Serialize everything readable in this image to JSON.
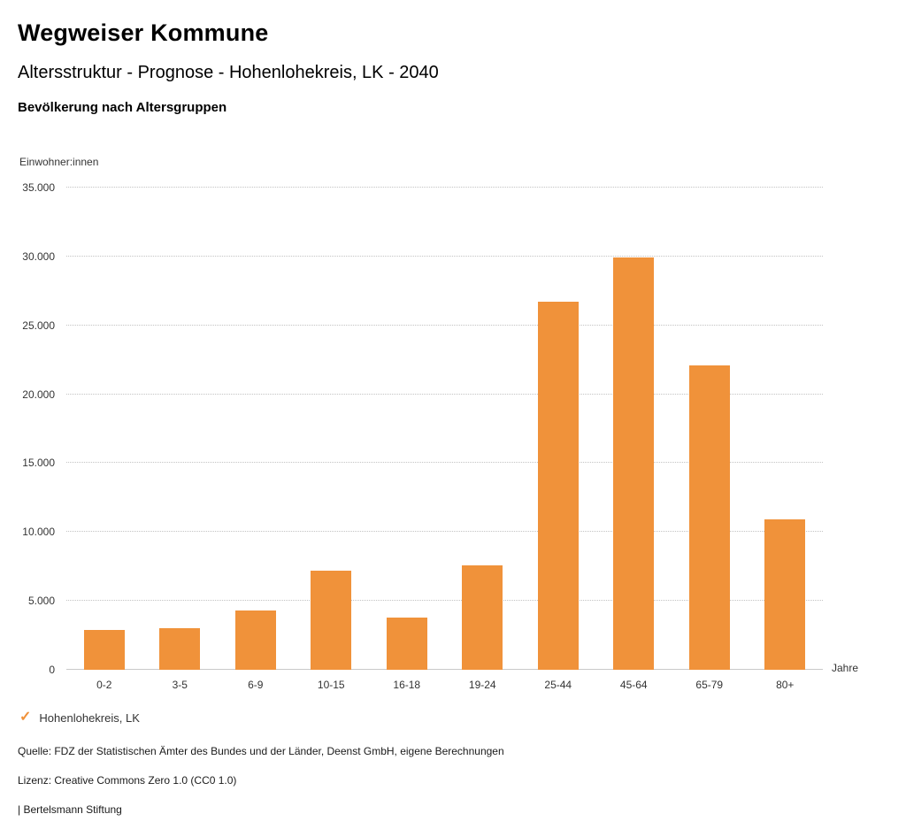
{
  "header": {
    "brand": "Wegweiser Kommune",
    "title": "Altersstruktur - Prognose - Hohenlohekreis, LK - 2040",
    "subtitle": "Bevölkerung nach Altersgruppen"
  },
  "chart_data": {
    "type": "bar",
    "title": "Bevölkerung nach Altersgruppen",
    "ylabel": "Einwohner:innen",
    "xlabel": "Jahre",
    "categories": [
      "0-2",
      "3-5",
      "6-9",
      "10-15",
      "16-18",
      "19-24",
      "25-44",
      "45-64",
      "65-79",
      "80+"
    ],
    "series": [
      {
        "name": "Hohenlohekreis, LK",
        "values": [
          2900,
          3000,
          4300,
          7200,
          3800,
          7600,
          26700,
          29900,
          22100,
          10900
        ]
      }
    ],
    "ylim": [
      0,
      35000
    ],
    "yticks": [
      0,
      5000,
      10000,
      15000,
      20000,
      25000,
      30000,
      35000
    ],
    "ytick_labels": [
      "0",
      "5.000",
      "10.000",
      "15.000",
      "20.000",
      "25.000",
      "30.000",
      "35.000"
    ],
    "grid": true,
    "legend_position": "bottom",
    "bar_color": "#f0923a"
  },
  "legend": {
    "items": [
      {
        "label": "Hohenlohekreis, LK",
        "checked": true,
        "check_icon": "✓",
        "color": "#f0923a"
      }
    ]
  },
  "footer": {
    "source": "Quelle: FDZ der Statistischen Ämter des Bundes und der Länder, Deenst GmbH, eigene Berechnungen",
    "license": "Lizenz: Creative Commons Zero 1.0 (CC0 1.0)",
    "attribution": "| Bertelsmann Stiftung"
  }
}
